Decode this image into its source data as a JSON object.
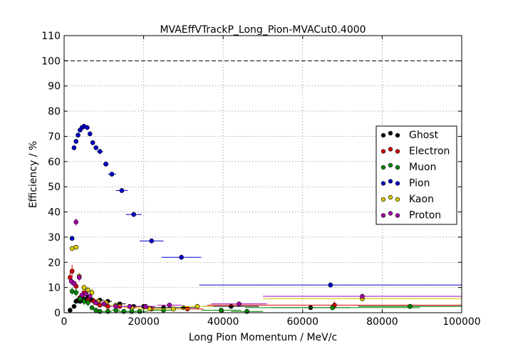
{
  "chart_data": {
    "type": "scatter",
    "title": "MVAEffVTrackP_Long_Pion-MVACut0.4000",
    "xlabel": "Long Pion Momentum / MeV/c",
    "ylabel": "Efficiency / %",
    "xlim": [
      0,
      100000
    ],
    "ylim": [
      0,
      110
    ],
    "xticks": [
      0,
      20000,
      40000,
      60000,
      80000,
      100000
    ],
    "yticks": [
      0,
      10,
      20,
      30,
      40,
      50,
      60,
      70,
      80,
      90,
      100,
      110
    ],
    "xtick_labels": [
      "0",
      "20000",
      "40000",
      "60000",
      "80000",
      "100000"
    ],
    "ytick_labels": [
      "0",
      "10",
      "20",
      "30",
      "40",
      "50",
      "60",
      "70",
      "80",
      "90",
      "100",
      "110"
    ],
    "grid": true,
    "reference_line_y": 100,
    "legend_position": "right",
    "series": [
      {
        "name": "Ghost",
        "color": "#000000",
        "points": [
          {
            "x": 1500,
            "y": 1.0,
            "xerr": 500,
            "yerr": 0.5
          },
          {
            "x": 2500,
            "y": 2.5,
            "xerr": 500,
            "yerr": 0.6
          },
          {
            "x": 3000,
            "y": 4.5,
            "xerr": 500,
            "yerr": 0.7
          },
          {
            "x": 3500,
            "y": 5.0,
            "xerr": 500,
            "yerr": 0.7
          },
          {
            "x": 4000,
            "y": 4.5,
            "xerr": 500,
            "yerr": 0.7
          },
          {
            "x": 5000,
            "y": 5.5,
            "xerr": 500,
            "yerr": 0.7
          },
          {
            "x": 6000,
            "y": 6.0,
            "xerr": 500,
            "yerr": 0.7
          },
          {
            "x": 7000,
            "y": 5.0,
            "xerr": 500,
            "yerr": 0.7
          },
          {
            "x": 9000,
            "y": 5.0,
            "xerr": 1000,
            "yerr": 0.6
          },
          {
            "x": 11000,
            "y": 4.5,
            "xerr": 1000,
            "yerr": 0.6
          },
          {
            "x": 14000,
            "y": 3.5,
            "xerr": 1500,
            "yerr": 0.6
          },
          {
            "x": 17500,
            "y": 2.5,
            "xerr": 2000,
            "yerr": 0.6
          },
          {
            "x": 20000,
            "y": 2.5,
            "xerr": 2000,
            "yerr": 0.6
          },
          {
            "x": 25000,
            "y": 2.0,
            "xerr": 2500,
            "yerr": 0.6
          },
          {
            "x": 30000,
            "y": 2.0,
            "xerr": 3000,
            "yerr": 0.6
          },
          {
            "x": 42000,
            "y": 2.5,
            "xerr": 7000,
            "yerr": 0.6
          },
          {
            "x": 62000,
            "y": 2.0,
            "xerr": 10000,
            "yerr": 0.6
          },
          {
            "x": 87000,
            "y": 2.5,
            "xerr": 13000,
            "yerr": 0.6
          }
        ]
      },
      {
        "name": "Electron",
        "color": "#dd0000",
        "points": [
          {
            "x": 1500,
            "y": 14.0,
            "xerr": 500,
            "yerr": 2.0
          },
          {
            "x": 2000,
            "y": 16.5,
            "xerr": 500,
            "yerr": 2.5
          },
          {
            "x": 3000,
            "y": 10.5,
            "xerr": 500,
            "yerr": 2.0
          },
          {
            "x": 4000,
            "y": 6.0,
            "xerr": 500,
            "yerr": 1.5
          },
          {
            "x": 5000,
            "y": 8.0,
            "xerr": 500,
            "yerr": 1.5
          },
          {
            "x": 6000,
            "y": 5.0,
            "xerr": 500,
            "yerr": 1.5
          },
          {
            "x": 7500,
            "y": 4.5,
            "xerr": 1000,
            "yerr": 1.5
          },
          {
            "x": 9000,
            "y": 3.0,
            "xerr": 1000,
            "yerr": 1.0
          },
          {
            "x": 11000,
            "y": 2.5,
            "xerr": 1000,
            "yerr": 1.0
          },
          {
            "x": 14000,
            "y": 2.5,
            "xerr": 1500,
            "yerr": 1.0
          },
          {
            "x": 17000,
            "y": 2.0,
            "xerr": 2000,
            "yerr": 1.0
          },
          {
            "x": 22000,
            "y": 1.5,
            "xerr": 2500,
            "yerr": 1.0
          },
          {
            "x": 31000,
            "y": 1.5,
            "xerr": 4000,
            "yerr": 1.0
          },
          {
            "x": 68000,
            "y": 3.0,
            "xerr": 32000,
            "yerr": 1.5
          }
        ]
      },
      {
        "name": "Muon",
        "color": "#008800",
        "points": [
          {
            "x": 2000,
            "y": 8.5,
            "xerr": 500,
            "yerr": 1.5
          },
          {
            "x": 3000,
            "y": 8.0,
            "xerr": 500,
            "yerr": 1.5
          },
          {
            "x": 4000,
            "y": 5.5,
            "xerr": 500,
            "yerr": 1.5
          },
          {
            "x": 5000,
            "y": 4.5,
            "xerr": 500,
            "yerr": 1.5
          },
          {
            "x": 6000,
            "y": 4.0,
            "xerr": 500,
            "yerr": 1.5
          },
          {
            "x": 7000,
            "y": 2.0,
            "xerr": 500,
            "yerr": 1.0
          },
          {
            "x": 8000,
            "y": 1.0,
            "xerr": 500,
            "yerr": 0.8
          },
          {
            "x": 9000,
            "y": 0.5,
            "xerr": 1000,
            "yerr": 0.5
          },
          {
            "x": 11000,
            "y": 0.5,
            "xerr": 1000,
            "yerr": 0.5
          },
          {
            "x": 13000,
            "y": 1.0,
            "xerr": 1000,
            "yerr": 0.8
          },
          {
            "x": 15000,
            "y": 0.5,
            "xerr": 1500,
            "yerr": 0.5
          },
          {
            "x": 17000,
            "y": 0.5,
            "xerr": 1500,
            "yerr": 0.5
          },
          {
            "x": 19000,
            "y": 0.5,
            "xerr": 2000,
            "yerr": 0.5
          },
          {
            "x": 25000,
            "y": 1.0,
            "xerr": 3000,
            "yerr": 0.8
          },
          {
            "x": 39500,
            "y": 1.0,
            "xerr": 5000,
            "yerr": 0.8
          },
          {
            "x": 46000,
            "y": 0.5,
            "xerr": 4000,
            "yerr": 0.5
          },
          {
            "x": 67500,
            "y": 2.0,
            "xerr": 22000,
            "yerr": 1.0
          },
          {
            "x": 87000,
            "y": 2.5,
            "xerr": 13000,
            "yerr": 1.0
          }
        ]
      },
      {
        "name": "Pion",
        "color": "#0000cc",
        "points": [
          {
            "x": 2000,
            "y": 29.5,
            "xerr": 500,
            "yerr": 1.0
          },
          {
            "x": 2500,
            "y": 65.5,
            "xerr": 500,
            "yerr": 1.0
          },
          {
            "x": 3000,
            "y": 68.0,
            "xerr": 500,
            "yerr": 1.0
          },
          {
            "x": 3500,
            "y": 70.5,
            "xerr": 500,
            "yerr": 1.0
          },
          {
            "x": 4000,
            "y": 72.5,
            "xerr": 500,
            "yerr": 1.0
          },
          {
            "x": 4500,
            "y": 73.5,
            "xerr": 500,
            "yerr": 1.0
          },
          {
            "x": 5000,
            "y": 74.0,
            "xerr": 500,
            "yerr": 1.0
          },
          {
            "x": 5800,
            "y": 73.5,
            "xerr": 500,
            "yerr": 1.0
          },
          {
            "x": 6500,
            "y": 71.0,
            "xerr": 500,
            "yerr": 1.0
          },
          {
            "x": 7200,
            "y": 67.5,
            "xerr": 500,
            "yerr": 1.0
          },
          {
            "x": 8000,
            "y": 65.5,
            "xerr": 500,
            "yerr": 1.0
          },
          {
            "x": 9000,
            "y": 64.0,
            "xerr": 750,
            "yerr": 1.0
          },
          {
            "x": 10500,
            "y": 59.0,
            "xerr": 750,
            "yerr": 1.0
          },
          {
            "x": 12000,
            "y": 55.0,
            "xerr": 1000,
            "yerr": 1.0
          },
          {
            "x": 14500,
            "y": 48.5,
            "xerr": 1500,
            "yerr": 1.0
          },
          {
            "x": 17500,
            "y": 39.0,
            "xerr": 2000,
            "yerr": 1.0
          },
          {
            "x": 22000,
            "y": 28.5,
            "xerr": 3000,
            "yerr": 1.0
          },
          {
            "x": 29500,
            "y": 22.0,
            "xerr": 5000,
            "yerr": 1.0
          },
          {
            "x": 67000,
            "y": 11.0,
            "xerr": 33000,
            "yerr": 1.0
          }
        ]
      },
      {
        "name": "Kaon",
        "color": "#ddcc00",
        "points": [
          {
            "x": 2000,
            "y": 25.5,
            "xerr": 500,
            "yerr": 1.0
          },
          {
            "x": 3000,
            "y": 26.0,
            "xerr": 500,
            "yerr": 1.0
          },
          {
            "x": 3800,
            "y": 14.5,
            "xerr": 500,
            "yerr": 1.5
          },
          {
            "x": 5000,
            "y": 10.0,
            "xerr": 500,
            "yerr": 1.5
          },
          {
            "x": 6000,
            "y": 9.0,
            "xerr": 500,
            "yerr": 1.5
          },
          {
            "x": 7000,
            "y": 8.0,
            "xerr": 500,
            "yerr": 1.5
          },
          {
            "x": 8500,
            "y": 4.5,
            "xerr": 1000,
            "yerr": 1.0
          },
          {
            "x": 10500,
            "y": 4.0,
            "xerr": 1000,
            "yerr": 1.0
          },
          {
            "x": 13000,
            "y": 3.0,
            "xerr": 1500,
            "yerr": 1.0
          },
          {
            "x": 17000,
            "y": 2.0,
            "xerr": 2000,
            "yerr": 1.0
          },
          {
            "x": 21500,
            "y": 1.5,
            "xerr": 3000,
            "yerr": 1.0
          },
          {
            "x": 27500,
            "y": 1.5,
            "xerr": 4000,
            "yerr": 1.0
          },
          {
            "x": 33500,
            "y": 2.5,
            "xerr": 4000,
            "yerr": 1.0
          },
          {
            "x": 75000,
            "y": 5.5,
            "xerr": 25000,
            "yerr": 1.0
          }
        ]
      },
      {
        "name": "Proton",
        "color": "#aa00aa",
        "points": [
          {
            "x": 1800,
            "y": 12.5,
            "xerr": 500,
            "yerr": 1.5
          },
          {
            "x": 2500,
            "y": 11.5,
            "xerr": 500,
            "yerr": 1.5
          },
          {
            "x": 3000,
            "y": 36.0,
            "xerr": 500,
            "yerr": 1.5
          },
          {
            "x": 3800,
            "y": 14.0,
            "xerr": 500,
            "yerr": 1.5
          },
          {
            "x": 4500,
            "y": 7.0,
            "xerr": 500,
            "yerr": 1.5
          },
          {
            "x": 5500,
            "y": 7.5,
            "xerr": 500,
            "yerr": 1.5
          },
          {
            "x": 6500,
            "y": 6.5,
            "xerr": 500,
            "yerr": 1.5
          },
          {
            "x": 8000,
            "y": 4.0,
            "xerr": 1000,
            "yerr": 1.0
          },
          {
            "x": 10000,
            "y": 3.5,
            "xerr": 1000,
            "yerr": 1.0
          },
          {
            "x": 13000,
            "y": 2.5,
            "xerr": 1500,
            "yerr": 1.0
          },
          {
            "x": 16500,
            "y": 2.5,
            "xerr": 2000,
            "yerr": 1.0
          },
          {
            "x": 20500,
            "y": 2.5,
            "xerr": 2500,
            "yerr": 1.0
          },
          {
            "x": 26500,
            "y": 3.0,
            "xerr": 3000,
            "yerr": 1.0
          },
          {
            "x": 44000,
            "y": 3.5,
            "xerr": 7000,
            "yerr": 1.0
          },
          {
            "x": 75000,
            "y": 6.5,
            "xerr": 25000,
            "yerr": 1.0
          }
        ]
      }
    ]
  }
}
